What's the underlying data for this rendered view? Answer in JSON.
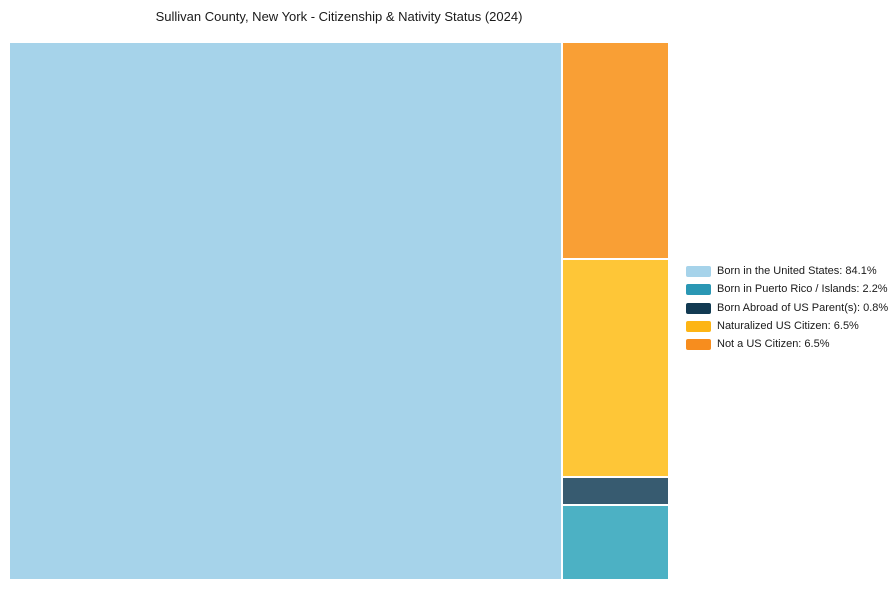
{
  "title": "Sullivan County, New York - Citizenship & Nativity Status (2024)",
  "chart_data": {
    "type": "treemap",
    "title": "Sullivan County, New York - Citizenship & Nativity Status (2024)",
    "unit": "%",
    "legend_position": "right",
    "grid": false,
    "categories": [
      "Born in the United States",
      "Born in Puerto Rico / Islands",
      "Born Abroad of US Parent(s)",
      "Naturalized US Citizen",
      "Not a US Citizen"
    ],
    "values": [
      84.1,
      2.2,
      0.8,
      6.5,
      6.5
    ],
    "series": [
      {
        "key": "born-in-the-united-states",
        "label": "Born in the United States",
        "value": 84.1,
        "legend_color": "#a6d3ea",
        "block_color": "#a6d3ea"
      },
      {
        "key": "born-in-puerto-rico-islands",
        "label": "Born in Puerto Rico / Islands",
        "value": 2.2,
        "legend_color": "#2a97b4",
        "block_color": "#4cb1c4"
      },
      {
        "key": "born-abroad-of-us-parents",
        "label": "Born Abroad of US Parent(s)",
        "value": 0.8,
        "legend_color": "#123a52",
        "block_color": "#375b70"
      },
      {
        "key": "naturalized-us-citizen",
        "label": "Naturalized US Citizen",
        "value": 6.5,
        "legend_color": "#fdb515",
        "block_color": "#fec637"
      },
      {
        "key": "not-a-us-citizen",
        "label": "Not a US Citizen",
        "value": 6.5,
        "legend_color": "#f78d1e",
        "block_color": "#f99f35"
      }
    ],
    "layout": {
      "main_block_key": "born-in-the-united-states",
      "column_order_top_to_bottom": [
        "not-a-us-citizen",
        "naturalized-us-citizen",
        "born-abroad-of-us-parents",
        "born-in-puerto-rico-islands"
      ]
    }
  }
}
